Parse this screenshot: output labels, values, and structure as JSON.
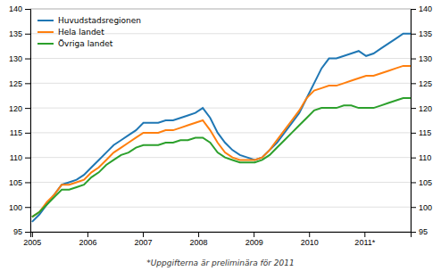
{
  "chart_data": {
    "type": "line",
    "footnote": "*Uppgifterna är preliminära för 2011",
    "x": [
      2005,
      2005.13398,
      2005.267961,
      2005.401941,
      2005.535922,
      2005.669902,
      2005.803882,
      2005.937863,
      2006.071843,
      2006.205824,
      2006.339804,
      2006.473784,
      2006.607765,
      2006.741745,
      2006.875725,
      2007.009706,
      2007.143686,
      2007.277667,
      2007.411647,
      2007.545627,
      2007.679608,
      2007.813588,
      2007.947569,
      2008.081549,
      2008.215529,
      2008.34951,
      2008.48349,
      2008.617471,
      2008.751451,
      2008.885431,
      2009.019412,
      2009.153392,
      2009.287373,
      2009.421353,
      2009.555333,
      2009.689314,
      2009.823294,
      2009.957275,
      2010.091255,
      2010.225235,
      2010.359216,
      2010.493196,
      2010.627176,
      2010.761157,
      2010.895137,
      2011.029118,
      2011.163098,
      2011.297078,
      2011.431059,
      2011.565039,
      2011.69902,
      2011.833
    ],
    "series": [
      {
        "name": "Huvudstadsregionen",
        "values": [
          97.0,
          98.5,
          100.5,
          102.5,
          104.5,
          105.0,
          105.5,
          106.5,
          108.0,
          109.5,
          111.0,
          112.5,
          113.5,
          114.5,
          115.5,
          117.0,
          117.0,
          117.0,
          117.5,
          117.5,
          118.0,
          118.5,
          119.0,
          120.0,
          118.0,
          115.0,
          113.0,
          111.5,
          110.5,
          110.0,
          109.5,
          110.0,
          111.5,
          113.0,
          115.0,
          117.0,
          119.0,
          122.0,
          125.0,
          128.0,
          130.0,
          130.0,
          130.5,
          131.0,
          131.5,
          130.5,
          131.0,
          132.0,
          133.0,
          134.0,
          135.0,
          135.0
        ]
      },
      {
        "name": "Hela landet",
        "values": [
          98.0,
          99.0,
          101.0,
          102.5,
          104.5,
          104.5,
          105.0,
          105.5,
          107.0,
          108.0,
          109.5,
          111.0,
          112.0,
          113.0,
          114.0,
          115.0,
          115.0,
          115.0,
          115.5,
          115.5,
          116.0,
          116.5,
          117.0,
          117.5,
          115.5,
          113.0,
          111.0,
          110.0,
          109.5,
          109.5,
          109.5,
          110.0,
          111.5,
          113.5,
          115.5,
          117.5,
          119.5,
          122.0,
          123.5,
          124.0,
          124.5,
          124.5,
          125.0,
          125.5,
          126.0,
          126.5,
          126.5,
          127.0,
          127.5,
          128.0,
          128.5,
          128.5
        ]
      },
      {
        "name": "Övriga landet",
        "values": [
          98.0,
          99.0,
          100.5,
          102.0,
          103.5,
          103.5,
          104.0,
          104.5,
          106.0,
          107.0,
          108.5,
          109.5,
          110.5,
          111.0,
          112.0,
          112.5,
          112.5,
          112.5,
          113.0,
          113.0,
          113.5,
          113.5,
          114.0,
          114.0,
          113.0,
          111.0,
          110.0,
          109.5,
          109.0,
          109.0,
          109.0,
          109.5,
          110.5,
          112.0,
          113.5,
          115.0,
          116.5,
          118.0,
          119.5,
          120.0,
          120.0,
          120.0,
          120.5,
          120.5,
          120.0,
          120.0,
          120.0,
          120.5,
          121.0,
          121.5,
          122.0,
          122.0
        ]
      }
    ],
    "xlim": [
      2004.97,
      2011.833
    ],
    "xticks": [
      2005,
      2006,
      2007,
      2008,
      2009,
      2010,
      {
        "value": 2011,
        "label": "2011*"
      }
    ],
    "ylim": [
      95,
      140
    ],
    "yticks": [
      95,
      100,
      105,
      110,
      115,
      120,
      125,
      130,
      135,
      140
    ],
    "y2lim": [
      95,
      140
    ],
    "y2ticks": [
      95,
      100,
      105,
      110,
      115,
      120,
      125,
      130,
      135,
      140
    ],
    "grid": true,
    "legend": "top-left"
  }
}
